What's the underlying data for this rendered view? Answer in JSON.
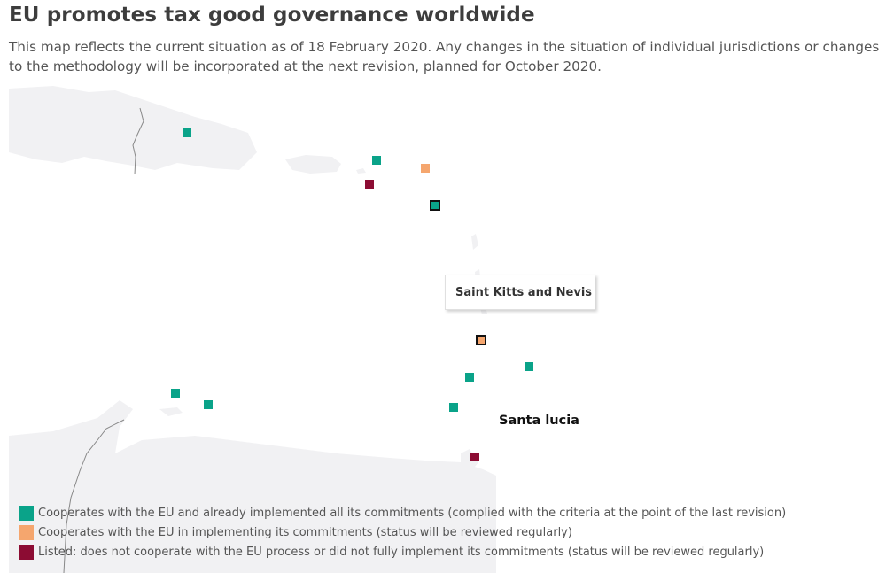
{
  "header": {
    "title": "EU promotes tax good governance worldwide",
    "subtitle": "This map reflects the current situation as of 18 February 2020. Any changes in the situation of individual jurisdictions or changes to the methodology will be incorporated at the next revision, planned for October 2020."
  },
  "colors": {
    "cooperates_implemented": "#0aa389",
    "cooperates_implementing": "#f5a66e",
    "listed": "#8c0c33",
    "land": "#f1f1f3",
    "border": "#888888"
  },
  "tooltip": {
    "text": "Saint Kitts and Nevis"
  },
  "map_labels": {
    "santa_lucia": "Santa lucia"
  },
  "legend": {
    "items": [
      {
        "label": "Cooperates with the EU and already implemented all its commitments (complied with the criteria at the point of the last revision)",
        "color": "#0aa389"
      },
      {
        "label": "Cooperates with the EU in implementing its commitments (status will be reviewed regularly)",
        "color": "#f5a66e"
      },
      {
        "label": "Listed: does not cooperate with the EU process or did not fully implement its commitments (status will be reviewed regularly)",
        "color": "#8c0c33"
      }
    ]
  }
}
